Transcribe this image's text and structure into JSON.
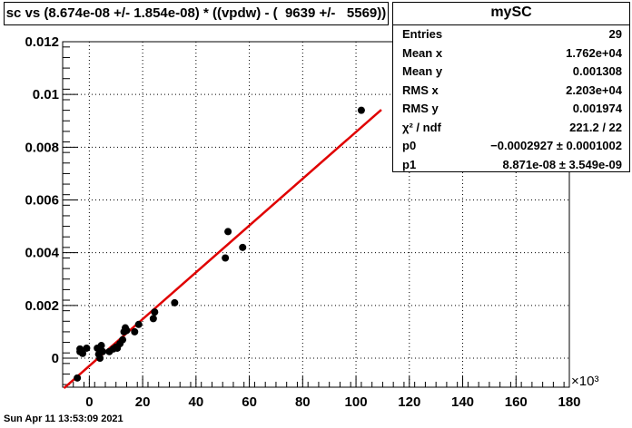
{
  "title": "sc vs (8.674e-08 +/- 1.854e-08) * ((vpdw) - (  9639 +/-   5569))",
  "stats": {
    "name": "mySC",
    "rows": [
      {
        "key": "Entries",
        "value": "29"
      },
      {
        "key": "Mean x",
        "value": "1.762e+04"
      },
      {
        "key": "Mean y",
        "value": "0.001308"
      },
      {
        "key": "RMS x",
        "value": "2.203e+04"
      },
      {
        "key": "RMS y",
        "value": "0.001974"
      },
      {
        "key": "χ² / ndf",
        "value": "221.2 / 22"
      },
      {
        "key": "p0",
        "value": "−0.0002927 ± 0.0001002"
      },
      {
        "key": "p1",
        "value": "8.871e-08 ± 3.549e-09"
      }
    ]
  },
  "date": "Sun Apr 11 13:53:09 2021",
  "chart_data": {
    "type": "scatter",
    "title": "sc vs (8.674e-08 +/- 1.854e-08) * ((vpdw) - (  9639 +/-   5569))",
    "xlabel": "",
    "ylabel": "",
    "x_exponent_label": "×10³",
    "xlim": [
      -10,
      180
    ],
    "ylim": [
      -0.0011,
      0.012
    ],
    "x_ticks": [
      0,
      20,
      40,
      60,
      80,
      100,
      120,
      140,
      160,
      180
    ],
    "x_tick_labels": [
      "0",
      "20",
      "40",
      "60",
      "80",
      "100",
      "120",
      "140",
      "160",
      "180"
    ],
    "y_ticks": [
      0,
      0.002,
      0.004,
      0.006,
      0.008,
      0.01,
      0.012
    ],
    "y_tick_labels": [
      "0",
      "0.002",
      "0.004",
      "0.006",
      "0.008",
      "0.01",
      "0.012"
    ],
    "grid": true,
    "marker_color": "#000000",
    "fit_color": "#e00000",
    "points": [
      {
        "x": -4.5,
        "y": -0.00075
      },
      {
        "x": -3.5,
        "y": 0.00025
      },
      {
        "x": -3.5,
        "y": 0.00035
      },
      {
        "x": -2.5,
        "y": 0.00018
      },
      {
        "x": -1.0,
        "y": 0.00038
      },
      {
        "x": 3.0,
        "y": 0.00038
      },
      {
        "x": 3.5,
        "y": 0.00015
      },
      {
        "x": 4.0,
        "y": 0.0
      },
      {
        "x": 4.5,
        "y": 0.00048
      },
      {
        "x": 5.0,
        "y": 0.00025
      },
      {
        "x": 7.5,
        "y": 0.00025
      },
      {
        "x": 9.0,
        "y": 0.00035
      },
      {
        "x": 10.0,
        "y": 0.00042
      },
      {
        "x": 10.5,
        "y": 0.00038
      },
      {
        "x": 11.5,
        "y": 0.00055
      },
      {
        "x": 12.5,
        "y": 0.0007
      },
      {
        "x": 13.0,
        "y": 0.001
      },
      {
        "x": 13.5,
        "y": 0.00115
      },
      {
        "x": 14.0,
        "y": 0.00105
      },
      {
        "x": 17.0,
        "y": 0.001
      },
      {
        "x": 18.5,
        "y": 0.00128
      },
      {
        "x": 24.0,
        "y": 0.0015
      },
      {
        "x": 24.5,
        "y": 0.00175
      },
      {
        "x": 32.0,
        "y": 0.0021
      },
      {
        "x": 51.0,
        "y": 0.0038
      },
      {
        "x": 52.0,
        "y": 0.0048
      },
      {
        "x": 57.5,
        "y": 0.0042
      },
      {
        "x": 102.0,
        "y": 0.0094
      }
    ],
    "fit_line": {
      "p0": -0.0002927,
      "p1": 8.871e-08,
      "x_range": [
        -9.5,
        109.5
      ]
    }
  }
}
